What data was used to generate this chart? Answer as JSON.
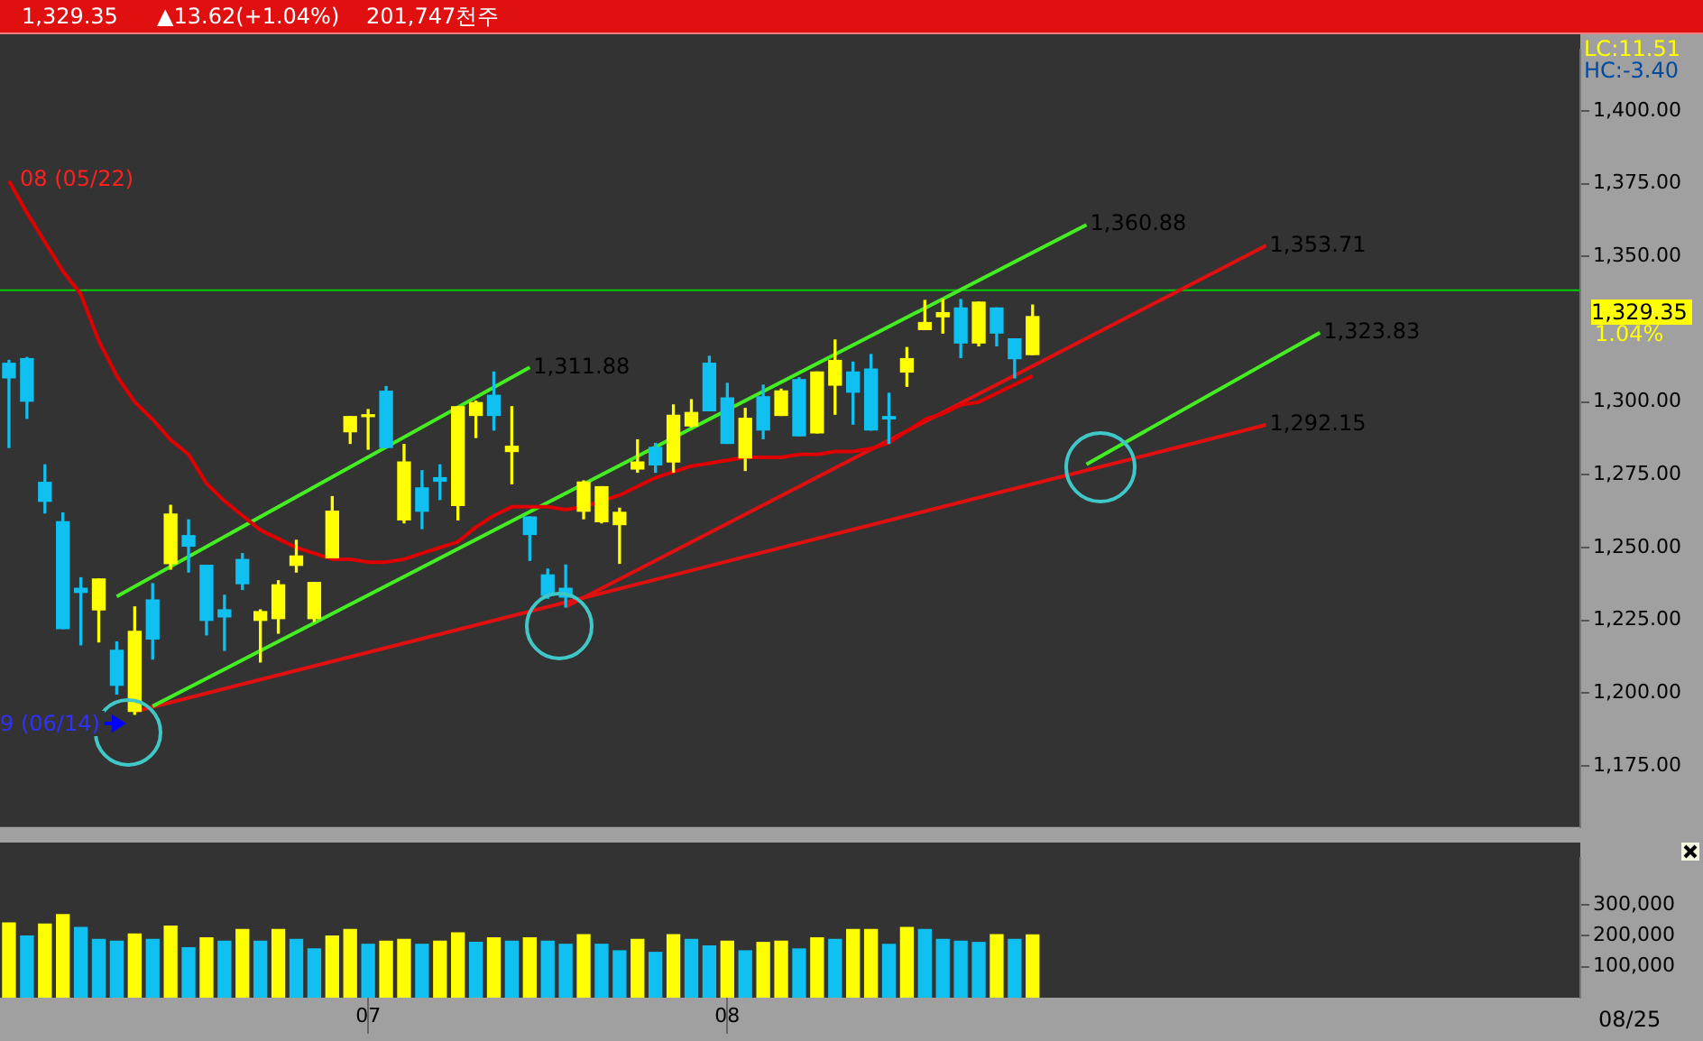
{
  "chart_data": [
    {
      "type": "candlestick",
      "title": "1,329.35",
      "subtitle": "▲13.62(+1.04%)",
      "categories": [
        null,
        null,
        null,
        null,
        null,
        null,
        null,
        null,
        null,
        null,
        null,
        null,
        null,
        null,
        null,
        null,
        null,
        null,
        null,
        null,
        "07",
        null,
        null,
        null,
        null,
        null,
        null,
        null,
        null,
        null,
        null,
        null,
        null,
        null,
        null,
        null,
        null,
        null,
        null,
        null,
        "08",
        null,
        null,
        null,
        null,
        null,
        null,
        null,
        null,
        null,
        null,
        null,
        null,
        null,
        null,
        null,
        null,
        null,
        null,
        null,
        null,
        null,
        null,
        null,
        null,
        null,
        null,
        null,
        null,
        null,
        null,
        null,
        null,
        null,
        null,
        null,
        null,
        null,
        null,
        null,
        null,
        null,
        null,
        null,
        null,
        null,
        null,
        null
      ],
      "ohlc": [
        [
          1313.3,
          1314.3,
          1284.4,
          1308.3
        ],
        [
          1314.9,
          1315.3,
          1294.4,
          1300.3
        ],
        [
          1272.4,
          1278.4,
          1261.9,
          1265.9
        ],
        [
          1258.9,
          1261.9,
          1222.2,
          1222.2
        ],
        [
          1236.0,
          1239.6,
          1216.6,
          1234.6
        ],
        [
          1228.6,
          1239.2,
          1217.6,
          1239.2
        ],
        [
          1214.7,
          1217.6,
          1199.7,
          1202.7
        ],
        [
          1193.7,
          1229.6,
          1192.7,
          1221.2
        ],
        [
          1232.0,
          1237.6,
          1211.7,
          1218.6
        ],
        [
          1244.5,
          1264.5,
          1242.6,
          1261.5
        ],
        [
          1254.1,
          1259.5,
          1241.6,
          1250.5
        ],
        [
          1243.9,
          1243.9,
          1220.0,
          1225.0
        ],
        [
          1228.6,
          1233.6,
          1214.7,
          1226.2
        ],
        [
          1245.9,
          1247.9,
          1235.6,
          1237.6
        ],
        [
          1225.0,
          1228.6,
          1210.7,
          1228.0
        ],
        [
          1225.6,
          1238.6,
          1220.6,
          1237.2
        ],
        [
          1243.9,
          1252.5,
          1241.6,
          1247.1
        ],
        [
          1225.6,
          1238.0,
          1224.6,
          1238.0
        ],
        [
          1246.5,
          1267.5,
          1246.5,
          1262.5
        ],
        [
          1289.8,
          1295.0,
          1285.8,
          1295.0
        ],
        [
          1295.0,
          1297.4,
          1283.8,
          1295.4
        ],
        [
          1303.7,
          1305.3,
          1284.4,
          1284.4
        ],
        [
          1259.5,
          1285.4,
          1258.5,
          1279.4
        ],
        [
          1270.5,
          1276.4,
          1256.5,
          1262.5
        ],
        [
          1274.0,
          1278.4,
          1266.5,
          1272.8
        ],
        [
          1264.5,
          1298.4,
          1259.5,
          1298.4
        ],
        [
          1295.4,
          1300.3,
          1287.8,
          1299.8
        ],
        [
          1302.3,
          1310.3,
          1290.4,
          1295.4
        ],
        [
          1283.0,
          1298.4,
          1271.9,
          1284.8
        ],
        [
          1260.5,
          1260.5,
          1245.6,
          1254.5
        ],
        [
          1240.6,
          1242.6,
          1232.6,
          1233.6
        ],
        [
          1236.0,
          1244.0,
          1229.6,
          1233.0
        ],
        [
          1262.5,
          1272.9,
          1259.9,
          1272.5
        ],
        [
          1258.9,
          1270.9,
          1258.5,
          1270.9
        ],
        [
          1257.9,
          1263.5,
          1244.6,
          1262.1
        ],
        [
          1277.0,
          1287.0,
          1275.9,
          1279.4
        ],
        [
          1284.4,
          1285.8,
          1275.9,
          1278.4
        ],
        [
          1279.4,
          1299.0,
          1275.9,
          1295.4
        ],
        [
          1291.8,
          1300.8,
          1291.4,
          1296.4
        ],
        [
          1313.3,
          1315.7,
          1297.0,
          1297.0
        ],
        [
          1301.4,
          1306.4,
          1285.8,
          1285.8
        ],
        [
          1280.8,
          1297.8,
          1276.5,
          1294.4
        ],
        [
          1301.8,
          1305.8,
          1287.4,
          1290.4
        ],
        [
          1295.4,
          1304.4,
          1295.4,
          1303.8
        ],
        [
          1307.7,
          1308.3,
          1288.4,
          1288.4
        ],
        [
          1289.4,
          1310.3,
          1289.4,
          1310.3
        ],
        [
          1305.8,
          1321.3,
          1295.8,
          1314.3
        ],
        [
          1310.3,
          1313.7,
          1292.4,
          1303.4
        ],
        [
          1311.3,
          1316.3,
          1290.4,
          1290.4
        ],
        [
          1295.0,
          1303.0,
          1285.8,
          1294.2
        ],
        [
          1310.3,
          1318.7,
          1305.4,
          1314.9
        ],
        [
          1324.9,
          1334.9,
          1324.9,
          1327.3
        ],
        [
          1329.3,
          1335.2,
          1323.7,
          1330.7
        ],
        [
          1332.3,
          1335.2,
          1315.3,
          1320.3
        ],
        [
          1320.3,
          1334.3,
          1319.3,
          1334.3
        ],
        [
          1332.3,
          1332.3,
          1319.3,
          1323.7
        ],
        [
          1321.7,
          1321.7,
          1308.3,
          1314.9
        ],
        [
          1316.3,
          1333.3,
          1316.3,
          1329.35
        ],
        null,
        null,
        null,
        null,
        null,
        null,
        null,
        null,
        null,
        null,
        null,
        null,
        null,
        null,
        null,
        null,
        null,
        null,
        null,
        null,
        null,
        null,
        null,
        null,
        null,
        null,
        null,
        null,
        null,
        null
      ],
      "colors": [
        "#10c0f0",
        "#10c0f0",
        "#10c0f0",
        "#10c0f0",
        "#10c0f0",
        "#ffff00",
        "#10c0f0",
        "#ffff00",
        "#10c0f0",
        "#ffff00",
        "#10c0f0",
        "#10c0f0",
        "#10c0f0",
        "#10c0f0",
        "#ffff00",
        "#ffff00",
        "#ffff00",
        "#ffff00",
        "#ffff00",
        "#ffff00",
        "#ffff00",
        "#10c0f0",
        "#ffff00",
        "#10c0f0",
        "#10c0f0",
        "#ffff00",
        "#ffff00",
        "#10c0f0",
        "#ffff00",
        "#10c0f0",
        "#10c0f0",
        "#10c0f0",
        "#ffff00",
        "#ffff00",
        "#ffff00",
        "#ffff00",
        "#10c0f0",
        "#ffff00",
        "#ffff00",
        "#10c0f0",
        "#10c0f0",
        "#ffff00",
        "#10c0f0",
        "#ffff00",
        "#10c0f0",
        "#ffff00",
        "#ffff00",
        "#10c0f0",
        "#10c0f0",
        "#10c0f0",
        "#ffff00",
        "#ffff00",
        "#ffff00",
        "#10c0f0",
        "#ffff00",
        "#10c0f0",
        "#10c0f0",
        "#ffff00",
        null,
        null,
        null,
        null,
        null,
        null,
        null,
        null,
        null,
        null,
        null,
        null,
        null,
        null,
        null,
        null,
        null,
        null,
        null,
        null,
        null,
        null,
        null,
        null,
        null,
        null,
        null,
        null,
        null,
        null
      ],
      "series": [
        {
          "type": "line",
          "color": "#e00000",
          "values": [
            1376,
            1365,
            1355,
            1345,
            1337,
            1321,
            1309,
            1300,
            1294,
            1287,
            1282,
            1272,
            1266,
            1261,
            1256,
            1253,
            1250,
            1248,
            1246,
            1246,
            1245,
            1245,
            1246,
            1248,
            1250,
            1252,
            1257,
            1261,
            1264,
            1264,
            1264,
            1263,
            1264,
            1266,
            1268,
            1271,
            1274,
            1276,
            1278,
            1279,
            1280,
            1281,
            1281,
            1281,
            1282,
            1282,
            1283,
            1283,
            1284,
            1286,
            1290,
            1294,
            1296,
            1299,
            1300,
            1303,
            1306,
            1309,
            null,
            null,
            null,
            null,
            null,
            null,
            null,
            null,
            null,
            null,
            null,
            null,
            null,
            null,
            null,
            null,
            null,
            null,
            null,
            null,
            null,
            null,
            null,
            null,
            null,
            null,
            null,
            null,
            null,
            null
          ]
        },
        {
          "type": "line",
          "color": "#44ee22",
          "values": [
            null,
            null,
            null,
            null,
            null,
            null,
            null,
            null,
            1195.5,
            null,
            null,
            null,
            null,
            null,
            null,
            null,
            null,
            null,
            null,
            null,
            null,
            null,
            null,
            null,
            null,
            null,
            null,
            null,
            null,
            null,
            null,
            null,
            null,
            null,
            null,
            null,
            null,
            null,
            null,
            null,
            null,
            null,
            null,
            null,
            null,
            null,
            null,
            null,
            null,
            null,
            null,
            null,
            null,
            null,
            null,
            null,
            null,
            null,
            null,
            null,
            1360.88,
            null,
            null,
            null,
            null,
            null,
            null,
            null,
            null,
            null,
            null,
            null,
            null,
            null,
            null,
            null,
            null,
            null,
            null,
            null,
            null,
            null,
            null,
            null,
            null,
            null,
            null,
            null
          ],
          "value_labels": [
            null,
            null,
            null,
            null,
            null,
            null,
            null,
            null,
            null,
            null,
            null,
            null,
            null,
            null,
            null,
            null,
            null,
            null,
            null,
            null,
            null,
            null,
            null,
            null,
            null,
            null,
            null,
            null,
            null,
            null,
            null,
            null,
            null,
            null,
            null,
            null,
            null,
            null,
            null,
            null,
            null,
            null,
            null,
            null,
            null,
            null,
            null,
            null,
            null,
            null,
            null,
            null,
            null,
            null,
            null,
            null,
            null,
            null,
            null,
            null,
            "1,360.88",
            null,
            null,
            null,
            null,
            null,
            null,
            null,
            null,
            null,
            null,
            null,
            null,
            null,
            null,
            null,
            null,
            null,
            null,
            null,
            null,
            null,
            null,
            null,
            null,
            null,
            null,
            null
          ]
        },
        {
          "type": "line",
          "color": "#44ee22",
          "values": [
            null,
            null,
            null,
            null,
            null,
            null,
            1233.2,
            null,
            null,
            null,
            null,
            null,
            null,
            null,
            null,
            null,
            null,
            null,
            null,
            null,
            null,
            null,
            null,
            null,
            null,
            null,
            null,
            null,
            null,
            1311.88,
            null,
            null,
            null,
            null,
            null,
            null,
            null,
            null,
            null,
            null,
            null,
            null,
            null,
            null,
            null,
            null,
            null,
            null,
            null,
            null,
            null,
            null,
            null,
            null,
            null,
            null,
            null,
            null,
            null,
            null,
            null,
            null,
            null,
            null,
            null,
            null,
            null,
            null,
            null,
            null,
            null,
            null,
            null,
            null,
            null,
            null,
            null,
            null,
            null,
            null,
            null,
            null,
            null,
            null,
            null,
            null,
            null,
            null
          ],
          "value_labels": [
            null,
            null,
            null,
            null,
            null,
            null,
            null,
            null,
            null,
            null,
            null,
            null,
            null,
            null,
            null,
            null,
            null,
            null,
            null,
            null,
            null,
            null,
            null,
            null,
            null,
            null,
            null,
            null,
            null,
            "1,311.88",
            null,
            null,
            null,
            null,
            null,
            null,
            null,
            null,
            null,
            null,
            null,
            null,
            null,
            null,
            null,
            null,
            null,
            null,
            null,
            null,
            null,
            null,
            null,
            null,
            null,
            null,
            null,
            null,
            null,
            null,
            null,
            null,
            null,
            null,
            null,
            null,
            null,
            null,
            null,
            null,
            null,
            null,
            null,
            null,
            null,
            null,
            null,
            null,
            null,
            null,
            null,
            null,
            null,
            null,
            null,
            null,
            null,
            null
          ]
        },
        {
          "type": "line",
          "color": "#44ee22",
          "values": [
            null,
            null,
            null,
            null,
            null,
            null,
            null,
            null,
            null,
            null,
            null,
            null,
            null,
            null,
            null,
            null,
            null,
            null,
            null,
            null,
            null,
            null,
            null,
            null,
            null,
            null,
            null,
            null,
            null,
            null,
            null,
            null,
            null,
            null,
            null,
            null,
            null,
            null,
            null,
            null,
            null,
            null,
            null,
            null,
            null,
            null,
            null,
            null,
            null,
            null,
            null,
            null,
            null,
            null,
            null,
            null,
            null,
            null,
            null,
            null,
            1278.6,
            null,
            null,
            null,
            null,
            null,
            null,
            null,
            null,
            null,
            null,
            null,
            null,
            1323.83,
            null,
            null,
            null,
            null,
            null,
            null,
            null,
            null,
            null,
            null,
            null,
            null,
            null,
            null
          ],
          "value_labels": [
            null,
            null,
            null,
            null,
            null,
            null,
            null,
            null,
            null,
            null,
            null,
            null,
            null,
            null,
            null,
            null,
            null,
            null,
            null,
            null,
            null,
            null,
            null,
            null,
            null,
            null,
            null,
            null,
            null,
            null,
            null,
            null,
            null,
            null,
            null,
            null,
            null,
            null,
            null,
            null,
            null,
            null,
            null,
            null,
            null,
            null,
            null,
            null,
            null,
            null,
            null,
            null,
            null,
            null,
            null,
            null,
            null,
            null,
            null,
            null,
            null,
            null,
            null,
            null,
            null,
            null,
            null,
            null,
            null,
            null,
            null,
            null,
            null,
            "1,323.83",
            null,
            null,
            null,
            null,
            null,
            null,
            null,
            null,
            null,
            null,
            null,
            null,
            null,
            null
          ]
        },
        {
          "type": "line",
          "color": "#e01010",
          "values": [
            null,
            null,
            null,
            null,
            null,
            null,
            null,
            1193.7,
            null,
            null,
            null,
            null,
            null,
            null,
            null,
            null,
            null,
            null,
            null,
            null,
            null,
            null,
            null,
            null,
            null,
            null,
            null,
            null,
            null,
            null,
            null,
            null,
            null,
            null,
            null,
            null,
            null,
            null,
            null,
            null,
            null,
            null,
            null,
            null,
            null,
            null,
            null,
            null,
            null,
            null,
            null,
            null,
            null,
            null,
            null,
            null,
            null,
            null,
            null,
            null,
            null,
            null,
            null,
            null,
            null,
            null,
            null,
            null,
            null,
            null,
            1292.15,
            null,
            null,
            null,
            null,
            null,
            null,
            null,
            null,
            null,
            null,
            null,
            null,
            null,
            null,
            null,
            null,
            null
          ],
          "value_labels": [
            null,
            null,
            null,
            null,
            null,
            null,
            null,
            null,
            null,
            null,
            null,
            null,
            null,
            null,
            null,
            null,
            null,
            null,
            null,
            null,
            null,
            null,
            null,
            null,
            null,
            null,
            null,
            null,
            null,
            null,
            null,
            null,
            null,
            null,
            null,
            null,
            null,
            null,
            null,
            null,
            null,
            null,
            null,
            null,
            null,
            null,
            null,
            null,
            null,
            null,
            null,
            null,
            null,
            null,
            null,
            null,
            null,
            null,
            null,
            null,
            null,
            null,
            null,
            null,
            null,
            null,
            null,
            null,
            null,
            null,
            "1,292.15",
            null,
            null,
            null,
            null,
            null,
            null,
            null,
            null,
            null,
            null,
            null,
            null,
            null,
            null,
            null,
            null,
            null
          ]
        },
        {
          "type": "line",
          "color": "#e01010",
          "values": [
            null,
            null,
            null,
            null,
            null,
            null,
            null,
            null,
            null,
            null,
            null,
            null,
            null,
            null,
            null,
            null,
            null,
            null,
            null,
            null,
            null,
            null,
            null,
            null,
            null,
            null,
            null,
            null,
            null,
            null,
            null,
            1229.6,
            null,
            null,
            null,
            null,
            null,
            null,
            null,
            null,
            null,
            null,
            null,
            null,
            null,
            null,
            null,
            null,
            null,
            null,
            null,
            null,
            null,
            null,
            null,
            null,
            null,
            null,
            null,
            null,
            null,
            null,
            null,
            null,
            null,
            null,
            null,
            null,
            null,
            null,
            1353.71,
            null,
            null,
            null,
            null,
            null,
            null,
            null,
            null,
            null,
            null,
            null,
            null,
            null,
            null,
            null,
            null,
            null
          ],
          "value_labels": [
            null,
            null,
            null,
            null,
            null,
            null,
            null,
            null,
            null,
            null,
            null,
            null,
            null,
            null,
            null,
            null,
            null,
            null,
            null,
            null,
            null,
            null,
            null,
            null,
            null,
            null,
            null,
            null,
            null,
            null,
            null,
            null,
            null,
            null,
            null,
            null,
            null,
            null,
            null,
            null,
            null,
            null,
            null,
            null,
            null,
            null,
            null,
            null,
            null,
            null,
            null,
            null,
            null,
            null,
            null,
            null,
            null,
            null,
            null,
            null,
            null,
            null,
            null,
            null,
            null,
            null,
            null,
            null,
            null,
            null,
            "1,353.71",
            null,
            null,
            null,
            null,
            null,
            null,
            null,
            null,
            null,
            null,
            null,
            null,
            null,
            null,
            null,
            null,
            null
          ]
        }
      ],
      "ref_lines": [
        {
          "axis": "y",
          "value": 1338.4,
          "color": "#00cc00"
        }
      ],
      "annotations": [
        "201,747천주",
        "08 (05/22)",
        "9 (06/14)",
        "LC:11.51",
        "HC:-3.40",
        "1,329.35",
        "1.04%"
      ],
      "ylim": [
        1154,
        1421
      ],
      "yticks": [
        {
          "value": 1175,
          "label": "1,175.00"
        },
        {
          "value": 1200,
          "label": "1,200.00"
        },
        {
          "value": 1225,
          "label": "1,225.00"
        },
        {
          "value": 1250,
          "label": "1,250.00"
        },
        {
          "value": 1275,
          "label": "1,275.00"
        },
        {
          "value": 1300,
          "label": "1,300.00"
        },
        {
          "value": 1350,
          "label": "1,350.00"
        },
        {
          "value": 1375,
          "label": "1,375.00"
        },
        {
          "value": 1400,
          "label": "1,400.00"
        }
      ],
      "tick_labels": "y"
    },
    {
      "type": "bar",
      "categories": [
        null,
        null,
        null,
        null,
        null,
        null,
        null,
        null,
        null,
        null,
        null,
        null,
        null,
        null,
        null,
        null,
        null,
        null,
        null,
        null,
        "07",
        null,
        null,
        null,
        null,
        null,
        null,
        null,
        null,
        null,
        null,
        null,
        null,
        null,
        null,
        null,
        null,
        null,
        null,
        null,
        "08",
        null,
        null,
        null,
        null,
        null,
        null,
        null,
        null,
        null,
        null,
        null,
        null,
        null,
        null,
        null,
        null,
        null,
        null,
        null,
        null,
        null,
        null,
        null,
        null,
        null,
        null,
        null,
        null,
        null,
        null,
        null,
        null,
        null,
        null,
        null,
        null,
        null,
        null,
        null,
        null,
        null,
        null,
        null,
        null,
        null,
        null,
        null
      ],
      "values": [
        241000,
        199000,
        237000,
        268000,
        226000,
        188000,
        182000,
        205000,
        188000,
        231000,
        161000,
        193000,
        182000,
        220000,
        182000,
        220000,
        188000,
        157000,
        199000,
        220000,
        172000,
        182000,
        188000,
        172000,
        182000,
        209000,
        178000,
        193000,
        182000,
        193000,
        182000,
        172000,
        203000,
        172000,
        151000,
        188000,
        146000,
        203000,
        188000,
        167000,
        182000,
        151000,
        178000,
        182000,
        157000,
        193000,
        188000,
        220000,
        220000,
        172000,
        226000,
        220000,
        188000,
        182000,
        178000,
        203000,
        188000,
        202000,
        null,
        null,
        null,
        null,
        null,
        null,
        null,
        null,
        null,
        null,
        null,
        null,
        null,
        null,
        null,
        null,
        null,
        null,
        null,
        null,
        null,
        null,
        null,
        null,
        null,
        null,
        null,
        null,
        null,
        null
      ],
      "colors": [
        "#ffff00",
        "#10c0f0",
        "#ffff00",
        "#ffff00",
        "#10c0f0",
        "#10c0f0",
        "#10c0f0",
        "#ffff00",
        "#10c0f0",
        "#ffff00",
        "#10c0f0",
        "#ffff00",
        "#10c0f0",
        "#ffff00",
        "#10c0f0",
        "#ffff00",
        "#10c0f0",
        "#10c0f0",
        "#ffff00",
        "#ffff00",
        "#10c0f0",
        "#ffff00",
        "#ffff00",
        "#10c0f0",
        "#ffff00",
        "#ffff00",
        "#10c0f0",
        "#ffff00",
        "#10c0f0",
        "#ffff00",
        "#10c0f0",
        "#10c0f0",
        "#ffff00",
        "#10c0f0",
        "#10c0f0",
        "#ffff00",
        "#10c0f0",
        "#ffff00",
        "#10c0f0",
        "#10c0f0",
        "#ffff00",
        "#10c0f0",
        "#ffff00",
        "#ffff00",
        "#10c0f0",
        "#ffff00",
        "#10c0f0",
        "#ffff00",
        "#ffff00",
        "#10c0f0",
        "#ffff00",
        "#10c0f0",
        "#10c0f0",
        "#10c0f0",
        "#10c0f0",
        "#ffff00",
        "#10c0f0",
        "#ffff00",
        null,
        null,
        null,
        null,
        null,
        null,
        null,
        null,
        null,
        null,
        null,
        null,
        null,
        null,
        null,
        null,
        null,
        null,
        null,
        null,
        null,
        null,
        null,
        null,
        null,
        null,
        null,
        null,
        null,
        null
      ],
      "annotations": [
        "08/25"
      ],
      "ylim": [
        0,
        450000
      ],
      "yticks": [
        {
          "value": 100000,
          "label": "100,000"
        },
        {
          "value": 200000,
          "label": "200,000"
        },
        {
          "value": 300000,
          "label": "300,000"
        }
      ]
    }
  ]
}
